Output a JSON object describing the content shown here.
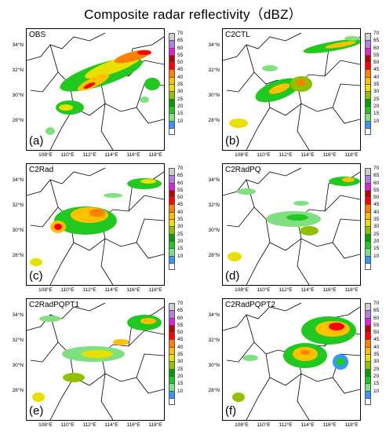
{
  "title": "Composite radar reflectivity（dBZ）",
  "lat_labels": [
    "34°N",
    "32°N",
    "30°N",
    "28°N"
  ],
  "lon_labels": [
    "108°E",
    "110°E",
    "112°E",
    "114°E",
    "116°E",
    "118°E"
  ],
  "colorbar": {
    "unit": "dBZ",
    "levels": [
      "70",
      "65",
      "60",
      "55",
      "50",
      "45",
      "40",
      "35",
      "30",
      "25",
      "20",
      "15",
      "10"
    ],
    "colors": [
      "#cfcfcf",
      "#b080e0",
      "#e020e0",
      "#c00000",
      "#ff0000",
      "#ff7f00",
      "#ffc000",
      "#e8e000",
      "#90c000",
      "#00a000",
      "#20c820",
      "#80e080",
      "#3399ff",
      "#ffffff"
    ]
  },
  "panels": [
    {
      "label": "OBS",
      "letter": "(a)"
    },
    {
      "label": "C2CTL",
      "letter": "(b)"
    },
    {
      "label": "C2Rad",
      "letter": "(c)"
    },
    {
      "label": "C2RadPQ",
      "letter": "(d)"
    },
    {
      "label": "C2RadPQPT1",
      "letter": "(e)"
    },
    {
      "label": "C2RadPQPT2",
      "letter": "(f)"
    }
  ]
}
